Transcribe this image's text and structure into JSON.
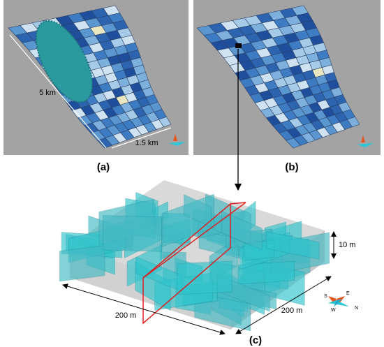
{
  "panels": {
    "a": {
      "label": "(a)",
      "length": "5 km",
      "width": "1.5 km"
    },
    "b": {
      "label": "(b)"
    },
    "c": {
      "label": "(c)",
      "side_left": "200 m",
      "side_right": "200 m",
      "height": "10 m",
      "compass": {
        "south": "S",
        "east": "E",
        "west": "W",
        "north": "N"
      }
    }
  }
}
